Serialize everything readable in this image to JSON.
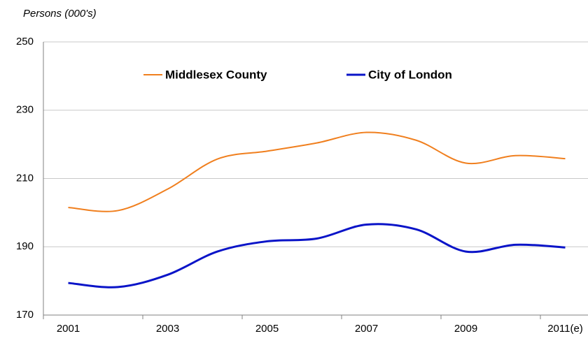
{
  "chart_data": {
    "type": "line",
    "y_axis_label": "Persons (000's)",
    "categories": [
      "2001",
      null,
      "2003",
      null,
      "2005",
      null,
      "2007",
      null,
      "2009",
      null,
      "2011(e)"
    ],
    "series": [
      {
        "name": "Middlesex County",
        "color": "#f07f1e",
        "values": [
          201.5,
          200.6,
          206.9,
          215.7,
          218,
          220.4,
          223.5,
          221.2,
          214.5,
          216.7,
          215.8
        ]
      },
      {
        "name": "City of London",
        "color": "#0a14c8",
        "values": [
          179.4,
          178.2,
          181.8,
          188.6,
          191.6,
          192.4,
          196.5,
          195.1,
          188.6,
          190.6,
          189.8
        ]
      }
    ],
    "ylim": [
      170,
      250
    ],
    "yticks": [
      170,
      190,
      210,
      230,
      250
    ],
    "grid": true,
    "legend": "top"
  }
}
